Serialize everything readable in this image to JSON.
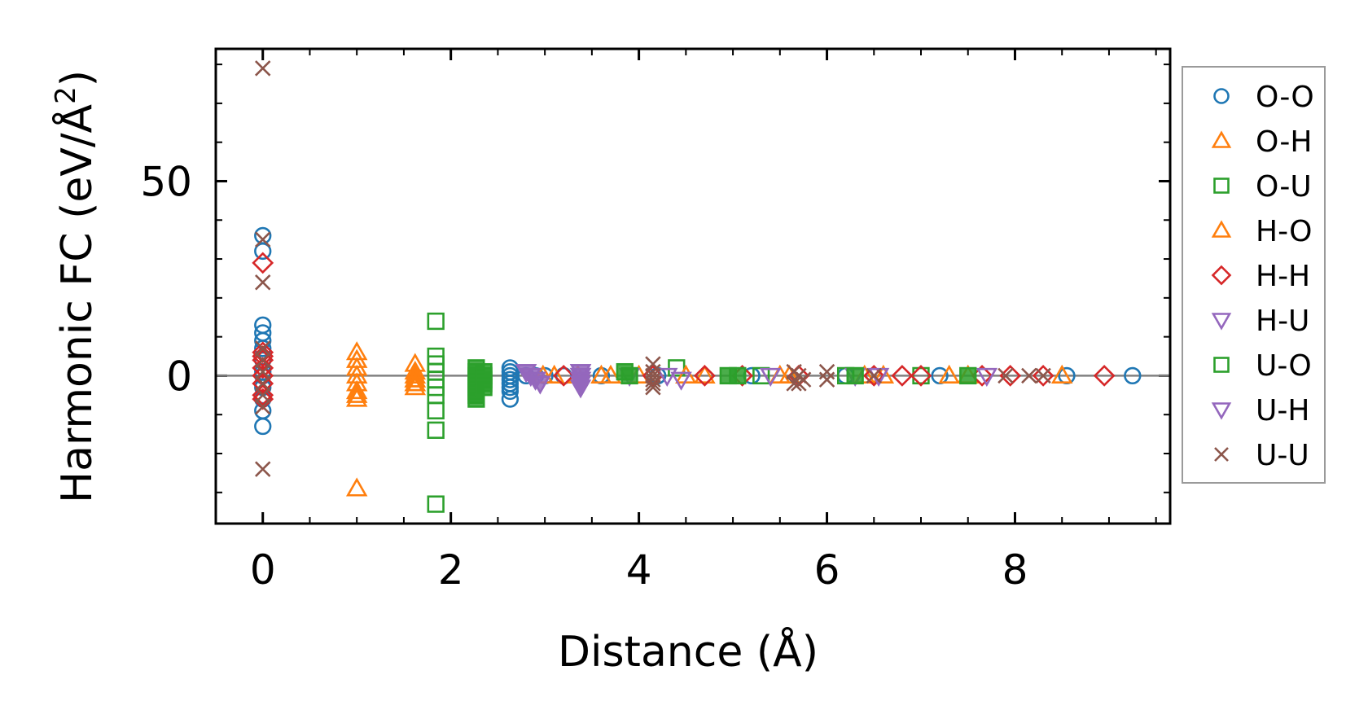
{
  "chart_data": {
    "type": "scatter",
    "xlabel": "Distance (Å)",
    "ylabel_main": "Harmonic FC (eV/Å",
    "ylabel_sup": "2",
    "ylabel_end": ")",
    "xlim": [
      -0.5,
      9.65
    ],
    "ylim": [
      -38,
      84
    ],
    "x_ticks": [
      0,
      2,
      4,
      6,
      8
    ],
    "x_tick_labels": [
      "0",
      "2",
      "4",
      "6",
      "8"
    ],
    "y_ticks": [
      0,
      50
    ],
    "y_tick_labels": [
      "0",
      "50"
    ],
    "zero_line": true,
    "grid": false,
    "legend_position": "right",
    "series": [
      {
        "name": "O-O",
        "marker": "circle",
        "color": "#1f77b4",
        "x": [
          0,
          0,
          0,
          0,
          0,
          0,
          0,
          0,
          0,
          0,
          0,
          0,
          0,
          2.63,
          2.63,
          2.63,
          2.63,
          2.63,
          2.63,
          2.63,
          2.63,
          2.8,
          2.9,
          3.0,
          3.2,
          3.6,
          4.2,
          5.2,
          6.2,
          7.2,
          8.55,
          9.25
        ],
        "y": [
          36,
          32,
          13,
          11,
          9,
          7,
          4,
          1,
          -3,
          -6,
          -9,
          -13,
          0,
          2,
          1,
          0,
          -1,
          -2,
          -3,
          -4,
          -6,
          0,
          0,
          0,
          0,
          0,
          0,
          0,
          0,
          0,
          0,
          0
        ]
      },
      {
        "name": "O-H",
        "marker": "triangle-up",
        "color": "#ff7f0e",
        "x": [
          1.0,
          1.0,
          1.0,
          1.0,
          1.0,
          1.0,
          1.0,
          1.0,
          1.0,
          1.62,
          1.62,
          1.62,
          1.62,
          1.62,
          3.1,
          3.6,
          4.0,
          4.7,
          5.6,
          6.4,
          7.3,
          8.5
        ],
        "y": [
          6,
          4,
          2,
          0,
          -2,
          -4,
          -5,
          -6,
          -29,
          3,
          1,
          0,
          -1,
          -2,
          0,
          0,
          0,
          0,
          0,
          0,
          0,
          0
        ]
      },
      {
        "name": "O-U",
        "marker": "square",
        "color": "#2ca02c",
        "x": [
          1.84,
          1.84,
          1.84,
          1.84,
          1.84,
          1.84,
          1.84,
          1.84,
          1.84,
          1.84,
          4.4,
          5.3,
          6.2,
          7.0
        ],
        "y": [
          14,
          5,
          3,
          1,
          -1,
          -3,
          -5,
          -9,
          -14,
          -33,
          2,
          0,
          0,
          0
        ]
      },
      {
        "name": "H-O",
        "marker": "triangle-up",
        "color": "#ff7f0e",
        "x": [
          1.62,
          1.62,
          1.62,
          2.98,
          3.35,
          3.7,
          4.5,
          5.5,
          6.6,
          7.5
        ],
        "y": [
          -1,
          -2,
          -3,
          0,
          0,
          0,
          0,
          0,
          0,
          0
        ]
      },
      {
        "name": "H-H",
        "marker": "diamond",
        "color": "#d62728",
        "x": [
          0,
          0,
          0,
          0,
          0,
          0,
          0,
          0,
          0,
          3.2,
          4.15,
          4.7,
          5.1,
          5.7,
          6.5,
          6.8,
          7.0,
          7.65,
          7.95,
          8.3,
          8.95
        ],
        "y": [
          29,
          6,
          5,
          4,
          2,
          0,
          -2,
          -5,
          -6,
          0,
          0,
          0,
          0,
          0,
          0,
          0,
          0,
          0,
          0,
          0,
          0
        ]
      },
      {
        "name": "H-U",
        "marker": "triangle-down",
        "color": "#9467bd",
        "x": [
          2.8,
          2.85,
          2.9,
          3.38,
          3.38,
          3.38,
          3.9,
          4.3,
          4.45,
          5.4,
          6.3,
          6.55,
          7.7
        ],
        "y": [
          1,
          0,
          -1,
          1,
          0,
          -3,
          0,
          0,
          -1,
          0,
          0,
          0,
          0
        ]
      },
      {
        "name": "U-O",
        "marker": "square-filled",
        "color": "#2ca02c",
        "x": [
          2.27,
          2.27,
          2.27,
          2.27,
          2.27,
          2.27,
          2.27,
          2.27,
          2.27,
          2.35,
          2.35,
          2.35,
          2.35,
          2.35,
          3.85,
          3.9,
          4.95,
          5.05,
          6.3,
          7.5
        ],
        "y": [
          2,
          1,
          0,
          -1,
          -2,
          -3,
          -4,
          -5,
          -6,
          1,
          0,
          -1,
          -2,
          -3,
          1,
          0,
          0,
          0,
          0,
          0
        ]
      },
      {
        "name": "U-H",
        "marker": "triangle-down-filled",
        "color": "#9467bd",
        "x": [
          2.8,
          2.85,
          2.9,
          2.95,
          3.38,
          3.38,
          3.38,
          3.38
        ],
        "y": [
          1,
          0,
          -1,
          -2,
          1,
          0,
          -1,
          -2
        ]
      },
      {
        "name": "U-U",
        "marker": "x",
        "color": "#8c564b",
        "x": [
          0,
          0,
          0,
          0,
          0,
          0,
          0,
          0,
          0,
          0,
          4.15,
          4.15,
          4.15,
          4.15,
          4.15,
          4.15,
          5.65,
          5.7,
          5.75,
          5.65,
          5.7,
          6.0,
          6.0,
          6.5,
          7.9,
          8.15,
          8.3
        ],
        "y": [
          79,
          35,
          24,
          7,
          4,
          1,
          -2,
          -5,
          -8,
          -24,
          3,
          1,
          0,
          -1,
          -2,
          -3,
          1,
          0,
          -1,
          -2,
          -2,
          1,
          -1,
          0,
          0,
          0,
          0
        ]
      }
    ]
  }
}
